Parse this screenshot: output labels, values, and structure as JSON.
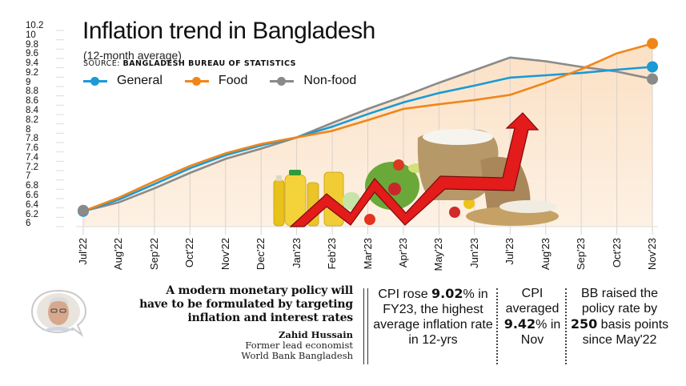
{
  "header": {
    "title": "Inflation trend in Bangladesh",
    "subtitle": "(12-month average)",
    "source_prefix": "SOURCE: ",
    "source_name": "BANGLADESH BUREAU OF STATISTICS"
  },
  "legend": [
    {
      "label": "General",
      "color": "#1a9ad6"
    },
    {
      "label": "Food",
      "color": "#f0861a"
    },
    {
      "label": "Non-food",
      "color": "#8a8a8a"
    }
  ],
  "y_ticks": [
    "10.2",
    "10",
    "9.8",
    "9.6",
    "9.4",
    "9.2",
    "9",
    "8.8",
    "8.6",
    "8.4",
    "8.2",
    "8",
    "7.8",
    "7.6",
    "7.4",
    "7.2",
    "7",
    "6.8",
    "6.6",
    "6.4",
    "6.2",
    "6"
  ],
  "x_ticks": [
    "Jul'22",
    "Aug'22",
    "Sep'22",
    "Oct'22",
    "Nov'22",
    "Dec'22",
    "Jan'23",
    "Feb'23",
    "Mar'23",
    "Apr'23",
    "May'23",
    "Jun'23",
    "Jul'23",
    "Aug'23",
    "Sep'23",
    "Oct'23",
    "Nov'23"
  ],
  "chart_data": {
    "type": "line",
    "title": "Inflation trend in Bangladesh",
    "subtitle": "(12-month average)",
    "source": "Bangladesh Bureau of Statistics",
    "xlabel": "",
    "ylabel": "",
    "ylim": [
      6,
      10.2
    ],
    "y_tick_step": 0.2,
    "grid": "vertical",
    "legend_position": "top-left",
    "categories": [
      "Jul'22",
      "Aug'22",
      "Sep'22",
      "Oct'22",
      "Nov'22",
      "Dec'22",
      "Jan'23",
      "Feb'23",
      "Mar'23",
      "Apr'23",
      "May'23",
      "Jun'23",
      "Jul'23",
      "Aug'23",
      "Sep'23",
      "Oct'23",
      "Nov'23"
    ],
    "series": [
      {
        "name": "General",
        "color": "#1a9ad6",
        "values": [
          6.33,
          6.58,
          6.91,
          7.25,
          7.53,
          7.74,
          7.91,
          8.14,
          8.41,
          8.66,
          8.86,
          9.02,
          9.19,
          9.24,
          9.29,
          9.36,
          9.42
        ]
      },
      {
        "name": "Food",
        "color": "#f0861a",
        "values": [
          6.33,
          6.62,
          6.97,
          7.3,
          7.57,
          7.77,
          7.91,
          8.05,
          8.28,
          8.52,
          8.62,
          8.71,
          8.82,
          9.08,
          9.37,
          9.71,
          9.92
        ]
      },
      {
        "name": "Non-food",
        "color": "#8a8a8a",
        "values": [
          6.33,
          6.52,
          6.82,
          7.15,
          7.45,
          7.67,
          7.91,
          8.22,
          8.52,
          8.79,
          9.08,
          9.35,
          9.62,
          9.54,
          9.42,
          9.32,
          9.16
        ]
      }
    ]
  },
  "quote": {
    "lines": [
      "A modern monetary policy will",
      "have to be formulated by targeting",
      "inflation and interest rates"
    ],
    "author": "Zahid Hussain",
    "role_1": "Former lead economist",
    "role_2": "World Bank Bangladesh"
  },
  "stats": [
    {
      "pre": "CPI rose ",
      "bold": "9.02",
      "post": "% in FY23, the highest average inflation rate in 12-yrs"
    },
    {
      "pre": "CPI averaged ",
      "bold": "9.42",
      "post": "% in Nov"
    },
    {
      "pre": "BB raised the policy rate by ",
      "bold": "250",
      "post": " basis points since May'22"
    }
  ],
  "colors": {
    "area_fill": "#fde6cf",
    "arrow_red": "#e31b1b",
    "grid": "#d9d2cb"
  }
}
